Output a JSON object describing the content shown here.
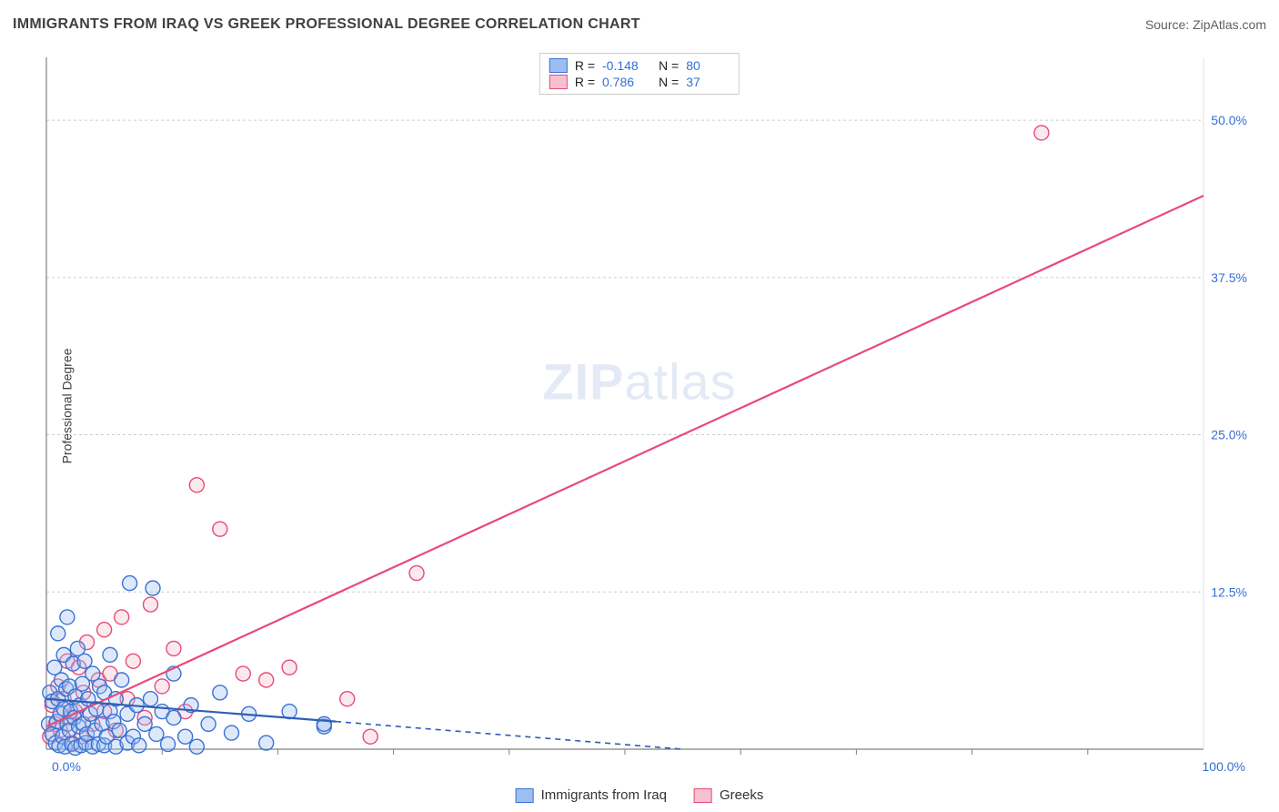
{
  "title": "IMMIGRANTS FROM IRAQ VS GREEK PROFESSIONAL DEGREE CORRELATION CHART",
  "source": "Source: ZipAtlas.com",
  "watermark_zip": "ZIP",
  "watermark_atlas": "atlas",
  "ylabel": "Professional Degree",
  "chart": {
    "type": "scatter",
    "xlim": [
      0,
      100
    ],
    "ylim": [
      0,
      55
    ],
    "background_color": "#ffffff",
    "grid_color": "#cccccc",
    "grid_dash": "3,3",
    "axis_color": "#808080",
    "ytick_vals": [
      12.5,
      25.0,
      37.5,
      50.0
    ],
    "ytick_labels": [
      "12.5%",
      "25.0%",
      "37.5%",
      "50.0%"
    ],
    "xtick_major": [
      0,
      100
    ],
    "xtick_labels": [
      "0.0%",
      "100.0%"
    ],
    "xtick_minor": [
      10,
      20,
      30,
      40,
      50,
      60,
      70,
      80,
      90
    ],
    "tick_label_color": "#356fd6",
    "tick_label_fontsize": 14,
    "marker_radius": 8,
    "marker_stroke_width": 1.4,
    "marker_fill_opacity": 0.35,
    "series": [
      {
        "name": "Immigrants from Iraq",
        "color_fill": "#9dbff0",
        "color_stroke": "#3a72d6",
        "R": -0.148,
        "N": 80,
        "trend": {
          "x1": 0,
          "y1": 4.0,
          "x2": 25,
          "y2": 2.2,
          "x_dash_to": 55,
          "y_dash_to": 0,
          "stroke": "#2f5fb5",
          "width": 2.2
        },
        "points": [
          [
            0.2,
            2.0
          ],
          [
            0.3,
            4.5
          ],
          [
            0.5,
            1.2
          ],
          [
            0.5,
            3.8
          ],
          [
            0.7,
            6.5
          ],
          [
            0.8,
            0.5
          ],
          [
            0.9,
            2.2
          ],
          [
            1.0,
            9.2
          ],
          [
            1.0,
            4.0
          ],
          [
            1.1,
            0.3
          ],
          [
            1.2,
            2.8
          ],
          [
            1.3,
            5.5
          ],
          [
            1.4,
            1.0
          ],
          [
            1.5,
            7.5
          ],
          [
            1.5,
            3.2
          ],
          [
            1.6,
            0.2
          ],
          [
            1.7,
            4.8
          ],
          [
            1.8,
            2.0
          ],
          [
            1.8,
            10.5
          ],
          [
            2.0,
            1.5
          ],
          [
            2.0,
            5.0
          ],
          [
            2.1,
            3.0
          ],
          [
            2.2,
            0.4
          ],
          [
            2.3,
            6.8
          ],
          [
            2.4,
            2.5
          ],
          [
            2.5,
            4.2
          ],
          [
            2.5,
            0.1
          ],
          [
            2.7,
            8.0
          ],
          [
            2.8,
            1.8
          ],
          [
            2.9,
            3.5
          ],
          [
            3.0,
            0.3
          ],
          [
            3.1,
            5.2
          ],
          [
            3.2,
            2.0
          ],
          [
            3.3,
            7.0
          ],
          [
            3.4,
            0.5
          ],
          [
            3.5,
            1.2
          ],
          [
            3.6,
            4.0
          ],
          [
            3.8,
            2.8
          ],
          [
            4.0,
            0.2
          ],
          [
            4.0,
            6.0
          ],
          [
            4.2,
            1.5
          ],
          [
            4.3,
            3.2
          ],
          [
            4.5,
            0.4
          ],
          [
            4.6,
            5.0
          ],
          [
            4.8,
            2.0
          ],
          [
            5.0,
            0.3
          ],
          [
            5.0,
            4.5
          ],
          [
            5.2,
            1.0
          ],
          [
            5.5,
            3.0
          ],
          [
            5.5,
            7.5
          ],
          [
            5.8,
            2.2
          ],
          [
            6.0,
            0.2
          ],
          [
            6.0,
            4.0
          ],
          [
            6.3,
            1.5
          ],
          [
            6.5,
            5.5
          ],
          [
            7.0,
            0.5
          ],
          [
            7.0,
            2.8
          ],
          [
            7.2,
            13.2
          ],
          [
            7.5,
            1.0
          ],
          [
            7.8,
            3.5
          ],
          [
            8.0,
            0.3
          ],
          [
            8.5,
            2.0
          ],
          [
            9.0,
            4.0
          ],
          [
            9.2,
            12.8
          ],
          [
            9.5,
            1.2
          ],
          [
            10.0,
            3.0
          ],
          [
            10.5,
            0.4
          ],
          [
            11.0,
            2.5
          ],
          [
            11.0,
            6.0
          ],
          [
            12.0,
            1.0
          ],
          [
            12.5,
            3.5
          ],
          [
            13.0,
            0.2
          ],
          [
            14.0,
            2.0
          ],
          [
            15.0,
            4.5
          ],
          [
            16.0,
            1.3
          ],
          [
            17.5,
            2.8
          ],
          [
            19.0,
            0.5
          ],
          [
            21.0,
            3.0
          ],
          [
            24.0,
            1.8
          ],
          [
            24.0,
            2.0
          ]
        ]
      },
      {
        "name": "Greeks",
        "color_fill": "#f6c0cf",
        "color_stroke": "#e84a7a",
        "R": 0.786,
        "N": 37,
        "trend": {
          "x1": 0,
          "y1": 1.8,
          "x2": 100,
          "y2": 44.0,
          "stroke": "#e84a7a",
          "width": 2.2
        },
        "points": [
          [
            0.3,
            1.0
          ],
          [
            0.5,
            3.5
          ],
          [
            0.8,
            2.0
          ],
          [
            1.0,
            5.0
          ],
          [
            1.2,
            1.5
          ],
          [
            1.5,
            4.0
          ],
          [
            1.8,
            7.0
          ],
          [
            2.0,
            2.5
          ],
          [
            2.2,
            0.5
          ],
          [
            2.5,
            3.0
          ],
          [
            2.8,
            6.5
          ],
          [
            3.0,
            1.0
          ],
          [
            3.2,
            4.5
          ],
          [
            3.5,
            8.5
          ],
          [
            4.0,
            2.0
          ],
          [
            4.5,
            5.5
          ],
          [
            5.0,
            3.0
          ],
          [
            5.0,
            9.5
          ],
          [
            5.5,
            6.0
          ],
          [
            6.0,
            1.5
          ],
          [
            6.5,
            10.5
          ],
          [
            7.0,
            4.0
          ],
          [
            7.5,
            7.0
          ],
          [
            8.5,
            2.5
          ],
          [
            9.0,
            11.5
          ],
          [
            10.0,
            5.0
          ],
          [
            11.0,
            8.0
          ],
          [
            12.0,
            3.0
          ],
          [
            13.0,
            21.0
          ],
          [
            15.0,
            17.5
          ],
          [
            17.0,
            6.0
          ],
          [
            19.0,
            5.5
          ],
          [
            21.0,
            6.5
          ],
          [
            26.0,
            4.0
          ],
          [
            28.0,
            1.0
          ],
          [
            32.0,
            14.0
          ],
          [
            86.0,
            49.0
          ]
        ]
      }
    ]
  },
  "legend_top": {
    "rows": [
      {
        "swatch_fill": "#9dbff0",
        "swatch_stroke": "#3a72d6",
        "r_label": "R = ",
        "r_val": "-0.148",
        "n_label": "N = ",
        "n_val": "80"
      },
      {
        "swatch_fill": "#f6c0cf",
        "swatch_stroke": "#e84a7a",
        "r_label": "R = ",
        "r_val": " 0.786",
        "n_label": "N = ",
        "n_val": "37"
      }
    ]
  },
  "legend_bottom": {
    "items": [
      {
        "swatch_fill": "#9dbff0",
        "swatch_stroke": "#3a72d6",
        "label": "Immigrants from Iraq"
      },
      {
        "swatch_fill": "#f6c0cf",
        "swatch_stroke": "#e84a7a",
        "label": "Greeks"
      }
    ]
  }
}
